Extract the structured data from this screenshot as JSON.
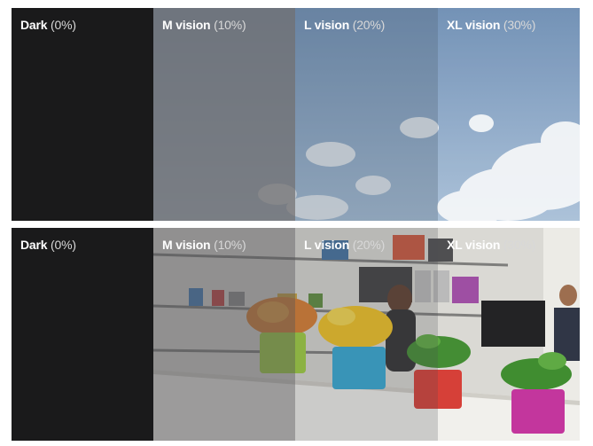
{
  "panels": [
    {
      "scene": "sky",
      "tints": [
        {
          "name": "Dark",
          "percent": "(0%)"
        },
        {
          "name": "M vision",
          "percent": "(10%)"
        },
        {
          "name": "L vision",
          "percent": "(20%)"
        },
        {
          "name": "XL vision",
          "percent": "(30%)"
        }
      ]
    },
    {
      "scene": "office",
      "tints": [
        {
          "name": "Dark",
          "percent": "(0%)"
        },
        {
          "name": "M vision",
          "percent": "(10%)"
        },
        {
          "name": "L vision",
          "percent": "(20%)"
        },
        {
          "name": "XL vision",
          "percent": "(30%)"
        }
      ]
    }
  ],
  "colors": {
    "dark_tint": "#1a1a1b",
    "sky_blue": "#8fb0cf",
    "pot_green": "#9ccf3a",
    "pot_blue": "#2ea7d4",
    "pot_red": "#d53a32",
    "pot_magenta": "#c2309a"
  }
}
